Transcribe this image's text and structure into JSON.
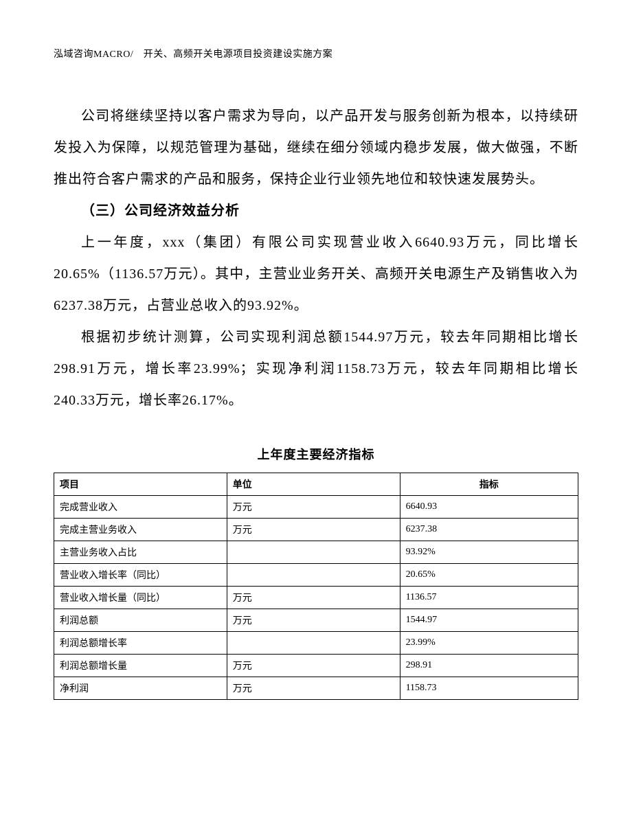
{
  "header": "泓域咨询MACRO/　开关、高频开关电源项目投资建设实施方案",
  "paragraph1": "公司将继续坚持以客户需求为导向，以产品开发与服务创新为根本，以持续研发投入为保障，以规范管理为基础，继续在细分领域内稳步发展，做大做强，不断推出符合客户需求的产品和服务，保持企业行业领先地位和较快速发展势头。",
  "sectionHeading": "（三）公司经济效益分析",
  "paragraph2": "上一年度，xxx（集团）有限公司实现营业收入6640.93万元，同比增长20.65%（1136.57万元）。其中，主营业业务开关、高频开关电源生产及销售收入为6237.38万元，占营业总收入的93.92%。",
  "paragraph3": "根据初步统计测算，公司实现利润总额1544.97万元，较去年同期相比增长298.91万元，增长率23.99%；实现净利润1158.73万元，较去年同期相比增长240.33万元，增长率26.17%。",
  "tableTitle": "上年度主要经济指标",
  "table": {
    "headers": {
      "project": "项目",
      "unit": "单位",
      "indicator": "指标"
    },
    "rows": [
      {
        "project": "完成营业收入",
        "unit": "万元",
        "indicator": "6640.93"
      },
      {
        "project": "完成主营业务收入",
        "unit": "万元",
        "indicator": "6237.38"
      },
      {
        "project": "主营业务收入占比",
        "unit": "",
        "indicator": "93.92%"
      },
      {
        "project": "营业收入增长率（同比）",
        "unit": "",
        "indicator": "20.65%"
      },
      {
        "project": "营业收入增长量（同比）",
        "unit": "万元",
        "indicator": "1136.57"
      },
      {
        "project": "利润总额",
        "unit": "万元",
        "indicator": "1544.97"
      },
      {
        "project": "利润总额增长率",
        "unit": "",
        "indicator": "23.99%"
      },
      {
        "project": "利润总额增长量",
        "unit": "万元",
        "indicator": "298.91"
      },
      {
        "project": "净利润",
        "unit": "万元",
        "indicator": "1158.73"
      }
    ]
  }
}
